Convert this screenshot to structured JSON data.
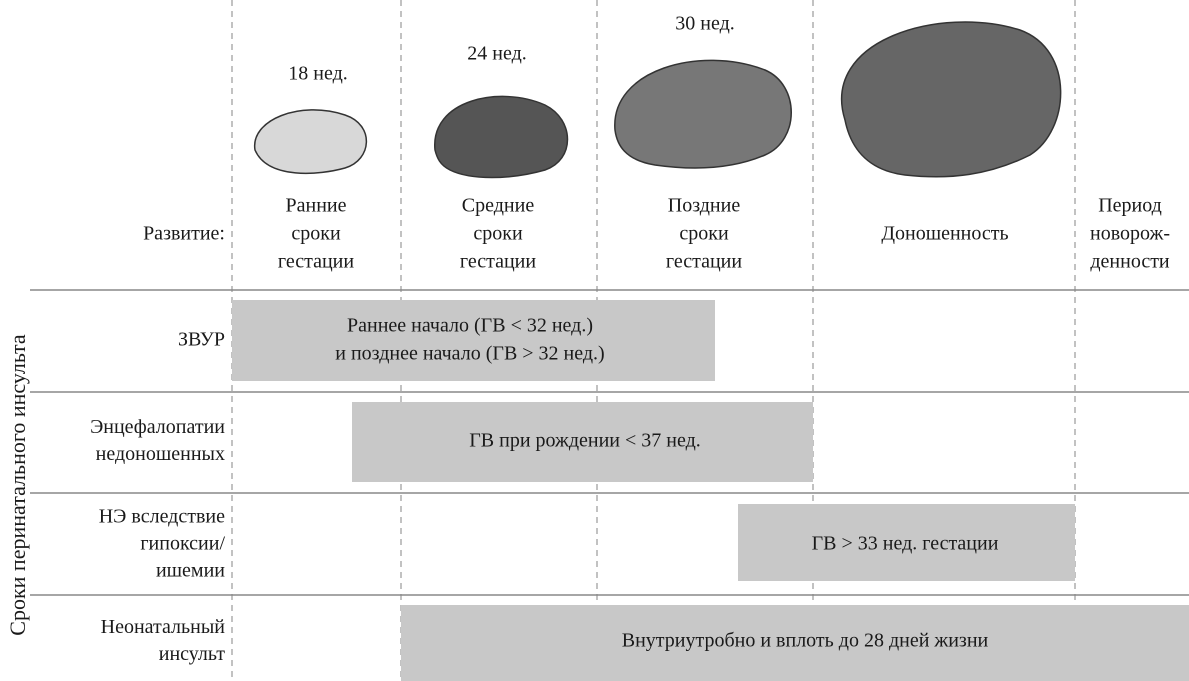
{
  "header": {
    "label": "Развитие:",
    "ages": [
      "18 нед.",
      "24 нед.",
      "30 нед."
    ],
    "stages": [
      [
        "Ранние",
        "сроки",
        "гестации"
      ],
      [
        "Средние",
        "сроки",
        "гестации"
      ],
      [
        "Поздние",
        "сроки",
        "гестации"
      ],
      [
        "Доношенность"
      ],
      [
        "Период",
        "новорож-",
        "денности"
      ]
    ]
  },
  "side_title": "Сроки перинатального инсульта",
  "rows": [
    {
      "label": [
        "ЗВУР"
      ],
      "bar": [
        "Раннее начало (ГВ < 32 нед.)",
        "и позднее начало (ГВ > 32 нед.)"
      ]
    },
    {
      "label": [
        "Энцефалопатии",
        "недоношенных"
      ],
      "bar": [
        "ГВ при рождении < 37 нед."
      ]
    },
    {
      "label": [
        "НЭ вследствие",
        "гипоксии/",
        "ишемии"
      ],
      "bar": [
        "ГВ > 33 нед. гестации"
      ]
    },
    {
      "label": [
        "Неонатальный",
        "инсульт"
      ],
      "bar": [
        "Внутриутробно и вплоть до 28 дней жизни"
      ]
    }
  ]
}
